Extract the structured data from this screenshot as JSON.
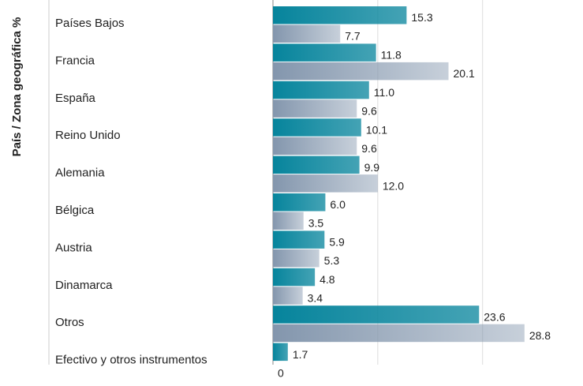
{
  "chart_data": {
    "type": "bar",
    "orientation": "horizontal",
    "ylabel": "País / Zona geográfica %",
    "categories": [
      "Países Bajos",
      "Francia",
      "España",
      "Reino Unido",
      "Alemania",
      "Bélgica",
      "Austria",
      "Dinamarca",
      "Otros",
      "Efectivo y otros instrumentos"
    ],
    "series": [
      {
        "color": "#06849c",
        "values": [
          15.3,
          11.8,
          11.0,
          10.1,
          9.9,
          6.0,
          5.9,
          4.8,
          23.6,
          1.7
        ],
        "value_labels": [
          "15.3",
          "11.8",
          "11.0",
          "10.1",
          "9.9",
          "6.0",
          "5.9",
          "4.8",
          "23.6",
          "1.7"
        ]
      },
      {
        "color": "#8396ad",
        "values": [
          7.7,
          20.1,
          9.6,
          9.6,
          12.0,
          3.5,
          5.3,
          3.4,
          28.8,
          0
        ],
        "value_labels": [
          "7.7",
          "20.1",
          "9.6",
          "9.6",
          "12.0",
          "3.5",
          "5.3",
          "3.4",
          "28.8",
          "0"
        ]
      }
    ],
    "xlim": [
      0,
      35.5
    ],
    "xticks": [
      0,
      12,
      24
    ],
    "grid": true
  }
}
